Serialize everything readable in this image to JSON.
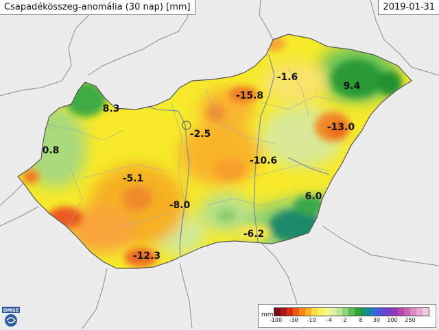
{
  "title": "Csapadékösszeg-anomália (30 nap) [mm]",
  "date": "2019-01-31",
  "logo_text": "OMSZ",
  "legend": {
    "unit": "mm",
    "colors": [
      "#7a0a14",
      "#a81a1a",
      "#d72a12",
      "#ef5a10",
      "#f7871a",
      "#fbb32a",
      "#fde13a",
      "#fdf45a",
      "#f7f78e",
      "#e3f0a4",
      "#bfe59a",
      "#8fd37a",
      "#5cbd50",
      "#2ea838",
      "#1a9466",
      "#1a82b0",
      "#3a64d8",
      "#5a4ad8",
      "#7a3ac8",
      "#923aba",
      "#b14aaa",
      "#cc62b2",
      "#e08ac2",
      "#e8a8d2",
      "#f0c8e2"
    ],
    "ticks": [
      "-100",
      "-30",
      "-10",
      "-4",
      "2",
      "8",
      "30",
      "100",
      "250"
    ]
  },
  "chart_data": {
    "type": "heatmap",
    "values": [
      {
        "label": "8.3",
        "value": 8.3
      },
      {
        "label": "0.8",
        "value": 0.8
      },
      {
        "label": "-5.1",
        "value": -5.1
      },
      {
        "label": "-2.5",
        "value": -2.5
      },
      {
        "label": "-15.8",
        "value": -15.8
      },
      {
        "label": "-1.6",
        "value": -1.6
      },
      {
        "label": "9.4",
        "value": 9.4
      },
      {
        "label": "-13.0",
        "value": -13.0
      },
      {
        "label": "-10.6",
        "value": -10.6
      },
      {
        "label": "-8.0",
        "value": -8.0
      },
      {
        "label": "6.0",
        "value": 6.0
      },
      {
        "label": "-6.2",
        "value": -6.2
      },
      {
        "label": "-12.3",
        "value": -12.3
      }
    ]
  }
}
